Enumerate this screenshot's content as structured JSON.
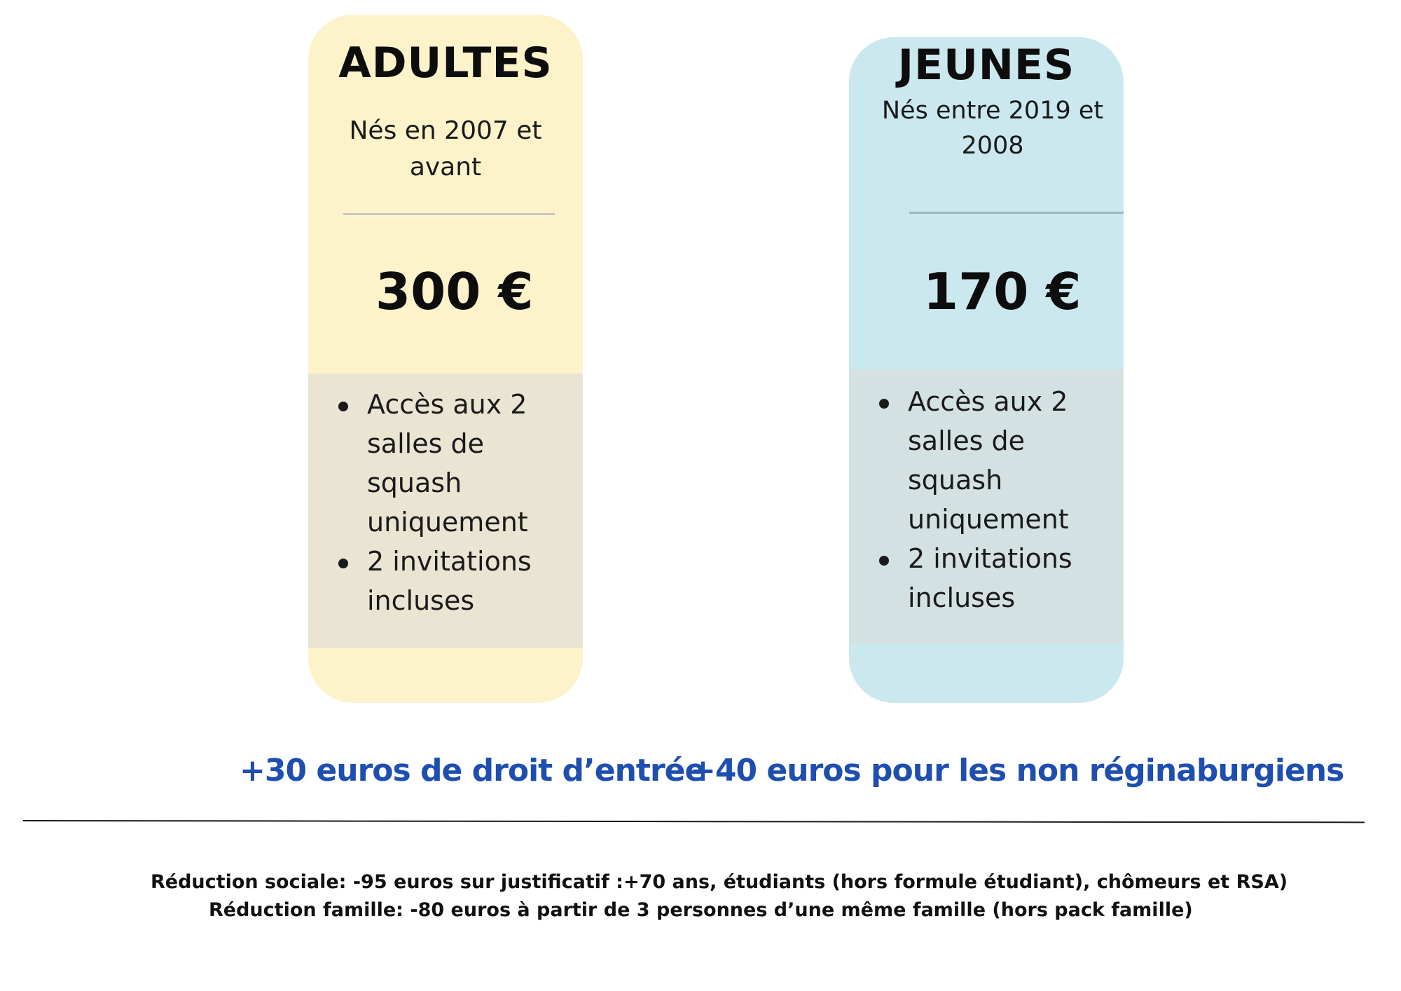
{
  "cards": {
    "adults": {
      "title": "ADULTES",
      "subtitle": "Nés en 2007 et avant",
      "price": "300 €",
      "features": [
        "Accès aux 2 salles de squash uniquement",
        "2 invitations incluses"
      ],
      "background_color": "#fdf3cb",
      "features_background_color": "#eae4d3"
    },
    "youth": {
      "title": "JEUNES",
      "subtitle": "Nés entre 2019 et 2008",
      "price": "170 €",
      "features": [
        "Accès aux 2 salles de squash uniquement",
        "2 invitations incluses"
      ],
      "background_color": "#cbe8ef",
      "features_background_color": "#d4e1e2"
    }
  },
  "fees": {
    "entry": "+30 euros de droit d’entrée",
    "non_residents": "+40 euros pour les non réginaburgiens",
    "color": "#1e4fb0"
  },
  "reductions": {
    "social": "Réduction sociale: -95 euros sur justificatif :+70 ans, étudiants (hors formule étudiant), chômeurs et RSA)",
    "family": "Réduction famille: -80 euros à partir de 3 personnes d’une même famille (hors pack famille)"
  }
}
